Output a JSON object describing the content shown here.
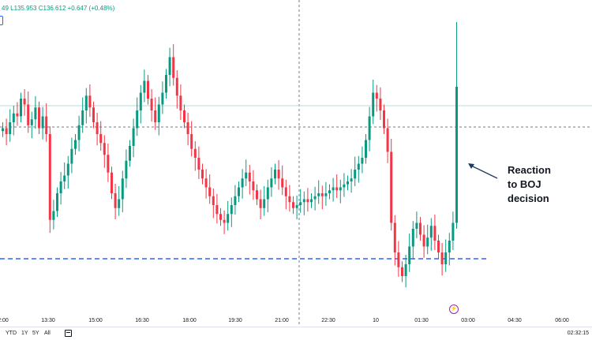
{
  "header": {
    "ohlc_text": "49 L135.953 C136.612 +0.647 (+0.48%)"
  },
  "annotation": {
    "lines": [
      "Reaction",
      "to BOJ",
      "decision"
    ]
  },
  "bottom_bar": {
    "ranges": [
      "YTD",
      "1Y",
      "5Y",
      "All"
    ],
    "clock": "02:32:15",
    "calendar_icon": "calendar-icon"
  },
  "colors": {
    "up": "#089981",
    "down": "#f23645",
    "support_line": "#2962ff",
    "crosshair": "#787b86",
    "event": "#9c27b0"
  },
  "chart_data": {
    "type": "candlestick",
    "x_ticks": [
      "2:00",
      "13:30",
      "15:00",
      "16:30",
      "18:00",
      "19:30",
      "21:00",
      "22:30",
      "10",
      "01:30",
      "03:00",
      "04:30",
      "06:00"
    ],
    "support_level_note": "horizontal dashed support line near recent lows",
    "closes": [
      0.62,
      0.6,
      0.64,
      0.67,
      0.66,
      0.72,
      0.7,
      0.63,
      0.65,
      0.69,
      0.62,
      0.66,
      0.6,
      0.31,
      0.34,
      0.4,
      0.44,
      0.46,
      0.5,
      0.55,
      0.58,
      0.63,
      0.68,
      0.73,
      0.69,
      0.64,
      0.6,
      0.57,
      0.53,
      0.47,
      0.4,
      0.35,
      0.38,
      0.45,
      0.51,
      0.56,
      0.62,
      0.68,
      0.74,
      0.78,
      0.72,
      0.68,
      0.64,
      0.7,
      0.74,
      0.8,
      0.86,
      0.79,
      0.73,
      0.68,
      0.64,
      0.6,
      0.55,
      0.52,
      0.48,
      0.45,
      0.42,
      0.39,
      0.36,
      0.33,
      0.31,
      0.3,
      0.33,
      0.36,
      0.39,
      0.42,
      0.45,
      0.47,
      0.44,
      0.41,
      0.38,
      0.35,
      0.38,
      0.42,
      0.45,
      0.48,
      0.45,
      0.42,
      0.39,
      0.37,
      0.35,
      0.36,
      0.37,
      0.38,
      0.37,
      0.38,
      0.39,
      0.4,
      0.39,
      0.4,
      0.41,
      0.42,
      0.41,
      0.42,
      0.43,
      0.44,
      0.45,
      0.48,
      0.5,
      0.52,
      0.58,
      0.66,
      0.74,
      0.72,
      0.68,
      0.62,
      0.54,
      0.3,
      0.2,
      0.15,
      0.12,
      0.16,
      0.22,
      0.28,
      0.3,
      0.26,
      0.22,
      0.25,
      0.29,
      0.24,
      0.2,
      0.16,
      0.2,
      0.24,
      0.3,
      0.76
    ],
    "ylim": [
      0,
      1
    ]
  }
}
